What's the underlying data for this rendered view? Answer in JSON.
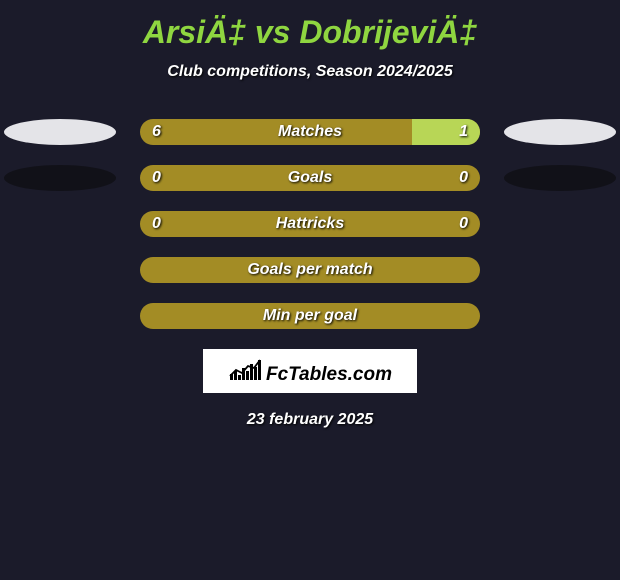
{
  "title": "ArsiÄ‡ vs DobrijeviÄ‡",
  "subtitle": "Club competitions, Season 2024/2025",
  "footer_date": "23 february 2025",
  "logo_text": "FcTables.com",
  "colors": {
    "background": "#1b1b2a",
    "title": "#8fd640",
    "text": "#ffffff",
    "shadow_light": "#e4e4e8",
    "shadow_dark": "#111118",
    "bar_left": "#a38c25",
    "bar_right": "#b8d656"
  },
  "logo_bars": {
    "color": "#000000",
    "heights": [
      6,
      9,
      5,
      12,
      9,
      16,
      13,
      20
    ]
  },
  "rows": [
    {
      "label": "Matches",
      "left_value": "6",
      "right_value": "1",
      "left_pct": 80,
      "right_pct": 20,
      "left_color": "#a38c25",
      "right_color": "#b8d656",
      "shadow_left_color": "#e4e4e8",
      "shadow_right_color": "#e4e4e8"
    },
    {
      "label": "Goals",
      "left_value": "0",
      "right_value": "0",
      "left_pct": 100,
      "right_pct": 0,
      "left_color": "#a38c25",
      "right_color": "#b8d656",
      "shadow_left_color": "#111118",
      "shadow_right_color": "#111118"
    },
    {
      "label": "Hattricks",
      "left_value": "0",
      "right_value": "0",
      "left_pct": 100,
      "right_pct": 0,
      "left_color": "#a38c25",
      "right_color": "#b8d656",
      "shadow_left_color": null,
      "shadow_right_color": null
    },
    {
      "label": "Goals per match",
      "left_value": "",
      "right_value": "",
      "left_pct": 100,
      "right_pct": 0,
      "left_color": "#a38c25",
      "right_color": "#b8d656",
      "shadow_left_color": null,
      "shadow_right_color": null
    },
    {
      "label": "Min per goal",
      "left_value": "",
      "right_value": "",
      "left_pct": 100,
      "right_pct": 0,
      "left_color": "#a38c25",
      "right_color": "#b8d656",
      "shadow_left_color": null,
      "shadow_right_color": null
    }
  ]
}
